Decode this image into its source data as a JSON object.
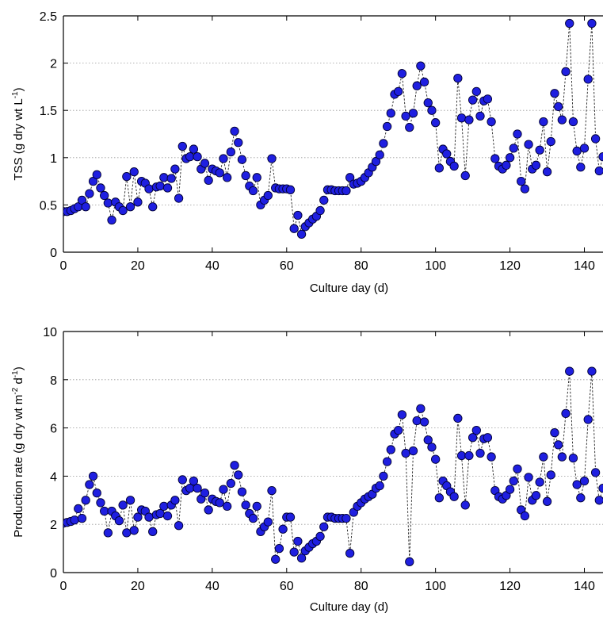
{
  "chart_data": [
    {
      "type": "line",
      "xlabel": "Culture day (d)",
      "ylabel": {
        "text": "TSS (g dry wt L",
        "sup": "-1",
        "close": ")"
      },
      "xlim": [
        0,
        145
      ],
      "ylim": [
        0,
        2.5
      ],
      "xticks": [
        "0",
        "20",
        "40",
        "60",
        "80",
        "100",
        "120",
        "140"
      ],
      "yticks": [
        "0",
        "0.5",
        "1",
        "1.5",
        "2",
        "2.5"
      ],
      "grid": "horizontal dotted",
      "marker": "filled circle",
      "line_style": "dashed black",
      "colors": {
        "marker_fill": "#1f1fe0",
        "marker_edge": "#000033",
        "line": "#222222"
      },
      "x": [
        0,
        1,
        2,
        3,
        4,
        5,
        6,
        7,
        8,
        9,
        10,
        11,
        12,
        13,
        14,
        15,
        16,
        17,
        18,
        19,
        20,
        21,
        22,
        23,
        24,
        25,
        26,
        27,
        28,
        29,
        30,
        31,
        32,
        33,
        34,
        35,
        36,
        37,
        38,
        39,
        40,
        41,
        42,
        43,
        44,
        45,
        46,
        47,
        48,
        49,
        50,
        51,
        52,
        53,
        54,
        55,
        56,
        57,
        58,
        59,
        60,
        61,
        62,
        63,
        64,
        65,
        66,
        67,
        68,
        69,
        70,
        71,
        72,
        73,
        74,
        75,
        76,
        77,
        78,
        79,
        80,
        81,
        82,
        83,
        84,
        85,
        86,
        87,
        88,
        89,
        90,
        91,
        92,
        93,
        94,
        95,
        96,
        97,
        98,
        99,
        100,
        101,
        102,
        103,
        104,
        105,
        106,
        107,
        108,
        109,
        110,
        111,
        112,
        113,
        114,
        115,
        116,
        117,
        118,
        119,
        120,
        121,
        122,
        123,
        124,
        125,
        126,
        127,
        128,
        129,
        130,
        131,
        132,
        133,
        134,
        135,
        136,
        137,
        138,
        139,
        140,
        141,
        142,
        143,
        144,
        145
      ],
      "series": [
        {
          "values": [
            0.43,
            0.43,
            0.44,
            0.46,
            0.48,
            0.55,
            0.48,
            0.62,
            0.75,
            0.82,
            0.68,
            0.6,
            0.52,
            0.34,
            0.53,
            0.48,
            0.44,
            0.8,
            0.48,
            0.85,
            0.53,
            0.75,
            0.73,
            0.67,
            0.48,
            0.69,
            0.7,
            0.79,
            0.68,
            0.78,
            0.88,
            0.57,
            1.12,
            0.99,
            1.01,
            1.09,
            1.01,
            0.88,
            0.94,
            0.76,
            0.88,
            0.86,
            0.84,
            0.99,
            0.79,
            1.06,
            1.28,
            1.16,
            0.98,
            0.81,
            0.7,
            0.65,
            0.79,
            0.5,
            0.55,
            0.6,
            0.99,
            0.68,
            0.67,
            0.67,
            0.67,
            0.66,
            0.25,
            0.39,
            0.19,
            0.27,
            0.31,
            0.35,
            0.38,
            0.44,
            0.55,
            0.66,
            0.66,
            0.65,
            0.65,
            0.65,
            0.65,
            0.79,
            0.72,
            0.73,
            0.75,
            0.79,
            0.84,
            0.9,
            0.96,
            1.03,
            1.15,
            1.33,
            1.47,
            1.67,
            1.7,
            1.89,
            1.44,
            1.32,
            1.47,
            1.76,
            1.97,
            1.8,
            1.58,
            1.5,
            1.37,
            0.89,
            1.09,
            1.04,
            0.96,
            0.91,
            1.84,
            1.42,
            0.81,
            1.4,
            1.61,
            1.7,
            1.44,
            1.6,
            1.62,
            1.38,
            0.99,
            0.91,
            0.88,
            0.92,
            1.0,
            1.1,
            1.25,
            0.75,
            0.67,
            1.14,
            0.88,
            0.92,
            1.08,
            1.38,
            0.85,
            1.17,
            1.68,
            1.54,
            1.4,
            1.91,
            2.42,
            1.38,
            1.07,
            0.9,
            1.1,
            1.83,
            2.42,
            1.2,
            0.86,
            1.01
          ]
        }
      ]
    },
    {
      "type": "line",
      "xlabel": "Culture day (d)",
      "ylabel": {
        "text": "Production rate (g dry wt m",
        "sup": "-2",
        "mid": " d",
        "sup2": "-1",
        "close": ")"
      },
      "xlim": [
        0,
        145
      ],
      "ylim": [
        0,
        10
      ],
      "xticks": [
        "0",
        "20",
        "40",
        "60",
        "80",
        "100",
        "120",
        "140"
      ],
      "yticks": [
        "0",
        "2",
        "4",
        "6",
        "8",
        "10"
      ],
      "grid": "horizontal dotted",
      "marker": "filled circle",
      "line_style": "dashed black",
      "colors": {
        "marker_fill": "#1f1fe0",
        "marker_edge": "#000033",
        "line": "#222222"
      },
      "x": [
        0,
        1,
        2,
        3,
        4,
        5,
        6,
        7,
        8,
        9,
        10,
        11,
        12,
        13,
        14,
        15,
        16,
        17,
        18,
        19,
        20,
        21,
        22,
        23,
        24,
        25,
        26,
        27,
        28,
        29,
        30,
        31,
        32,
        33,
        34,
        35,
        36,
        37,
        38,
        39,
        40,
        41,
        42,
        43,
        44,
        45,
        46,
        47,
        48,
        49,
        50,
        51,
        52,
        53,
        54,
        55,
        56,
        57,
        58,
        59,
        60,
        61,
        62,
        63,
        64,
        65,
        66,
        67,
        68,
        69,
        70,
        71,
        72,
        73,
        74,
        75,
        76,
        77,
        78,
        79,
        80,
        81,
        82,
        83,
        84,
        85,
        86,
        87,
        88,
        89,
        90,
        91,
        92,
        93,
        94,
        95,
        96,
        97,
        98,
        99,
        100,
        101,
        102,
        103,
        104,
        105,
        106,
        107,
        108,
        109,
        110,
        111,
        112,
        113,
        114,
        115,
        116,
        117,
        118,
        119,
        120,
        121,
        122,
        123,
        124,
        125,
        126,
        127,
        128,
        129,
        130,
        131,
        132,
        133,
        134,
        135,
        136,
        137,
        138,
        139,
        140,
        141,
        142,
        143,
        144,
        145
      ],
      "series": [
        {
          "values": [
            2.05,
            2.08,
            2.12,
            2.18,
            2.65,
            2.25,
            3.0,
            3.65,
            4.0,
            3.3,
            2.9,
            2.55,
            1.65,
            2.55,
            2.35,
            2.15,
            2.8,
            1.65,
            3.0,
            1.75,
            2.3,
            2.6,
            2.55,
            2.3,
            1.7,
            2.4,
            2.45,
            2.75,
            2.35,
            2.8,
            3.0,
            1.95,
            3.85,
            3.4,
            3.5,
            3.8,
            3.5,
            3.05,
            3.3,
            2.6,
            3.05,
            2.95,
            2.9,
            3.45,
            2.75,
            3.7,
            4.45,
            4.05,
            3.35,
            2.8,
            2.45,
            2.25,
            2.75,
            1.7,
            1.9,
            2.1,
            3.4,
            0.55,
            1.0,
            1.8,
            2.3,
            2.3,
            0.85,
            1.3,
            0.6,
            0.9,
            1.05,
            1.2,
            1.3,
            1.5,
            1.9,
            2.3,
            2.3,
            2.25,
            2.25,
            2.25,
            2.25,
            0.8,
            2.5,
            2.75,
            2.9,
            3.05,
            3.15,
            3.25,
            3.5,
            3.6,
            4.0,
            4.6,
            5.1,
            5.75,
            5.9,
            6.55,
            4.95,
            0.45,
            5.05,
            6.3,
            6.8,
            6.25,
            5.5,
            5.2,
            4.7,
            3.1,
            3.8,
            3.6,
            3.35,
            3.15,
            6.4,
            4.85,
            2.8,
            4.85,
            5.6,
            5.9,
            4.95,
            5.55,
            5.6,
            4.8,
            3.4,
            3.15,
            3.05,
            3.2,
            3.45,
            3.8,
            4.3,
            2.6,
            2.35,
            3.95,
            3.0,
            3.2,
            3.75,
            4.8,
            2.95,
            4.05,
            5.8,
            5.3,
            4.8,
            6.6,
            8.35,
            4.75,
            3.65,
            3.1,
            3.8,
            6.35,
            8.35,
            4.15,
            3.0,
            3.5
          ]
        }
      ]
    }
  ]
}
